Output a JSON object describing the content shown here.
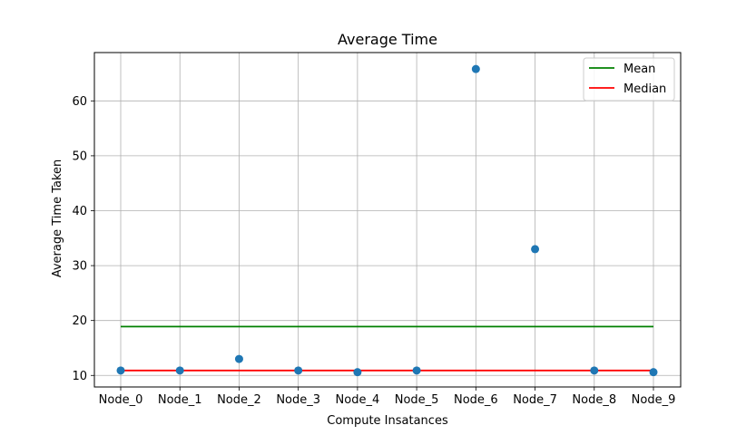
{
  "chart_data": {
    "type": "scatter",
    "title": "Average Time",
    "xlabel": "Compute Insatances",
    "ylabel": "Average Time Taken",
    "categories": [
      "Node_0",
      "Node_1",
      "Node_2",
      "Node_3",
      "Node_4",
      "Node_5",
      "Node_6",
      "Node_7",
      "Node_8",
      "Node_9"
    ],
    "values": [
      10.9,
      10.9,
      13.0,
      10.9,
      10.6,
      10.9,
      65.8,
      33.0,
      10.9,
      10.6
    ],
    "ylim": [
      7.9,
      68.8
    ],
    "yticks": [
      10,
      20,
      30,
      40,
      50,
      60
    ],
    "grid": true,
    "legend_position": "top-right",
    "reference_lines": [
      {
        "name": "Mean",
        "value": 18.9,
        "color": "#008000"
      },
      {
        "name": "Median",
        "value": 10.9,
        "color": "#ff0000"
      }
    ],
    "point_color": "#1f77b4"
  }
}
